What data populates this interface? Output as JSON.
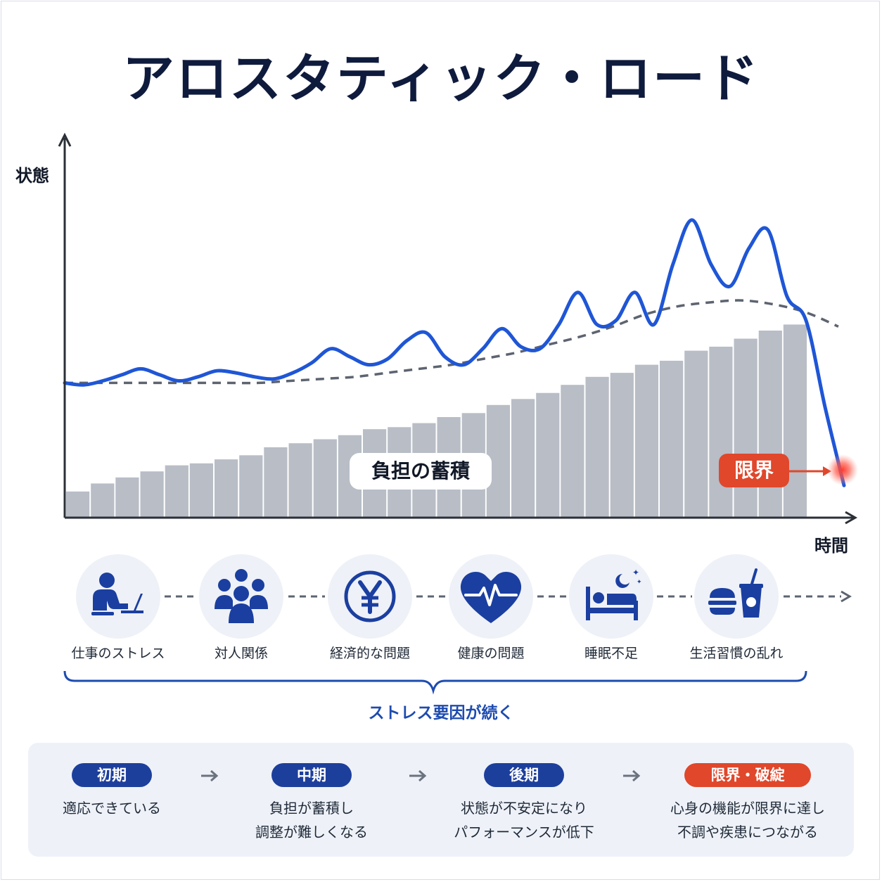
{
  "title": "アロスタティック・ロード",
  "chart_data": {
    "type": "line",
    "ylabel": "状態",
    "xlabel": "時間",
    "bars_label": "負担の蓄積",
    "limit_label": "限界",
    "bar_values": [
      0.13,
      0.17,
      0.2,
      0.23,
      0.26,
      0.27,
      0.29,
      0.31,
      0.35,
      0.37,
      0.39,
      0.41,
      0.44,
      0.45,
      0.47,
      0.5,
      0.52,
      0.56,
      0.59,
      0.62,
      0.66,
      0.7,
      0.72,
      0.76,
      0.78,
      0.83,
      0.85,
      0.89,
      0.93,
      0.96
    ],
    "state_values": [
      0.67,
      0.66,
      0.68,
      0.71,
      0.74,
      0.71,
      0.68,
      0.7,
      0.73,
      0.72,
      0.7,
      0.69,
      0.72,
      0.77,
      0.84,
      0.8,
      0.76,
      0.79,
      0.88,
      0.92,
      0.8,
      0.76,
      0.84,
      0.94,
      0.85,
      0.84,
      0.96,
      1.12,
      0.96,
      0.98,
      1.12,
      0.96,
      1.26,
      1.48,
      1.26,
      1.15,
      1.34,
      1.43,
      1.1,
      0.98,
      0.55,
      0.16
    ],
    "baseline_values": [
      0.67,
      0.67,
      0.67,
      0.67,
      0.67,
      0.67,
      0.67,
      0.68,
      0.69,
      0.7,
      0.72,
      0.74,
      0.76,
      0.79,
      0.82,
      0.86,
      0.9,
      0.95,
      1.01,
      1.05,
      1.07,
      1.08,
      1.06,
      1.02,
      0.95
    ]
  },
  "factors": [
    {
      "label": "仕事のストレス",
      "icon": "person-laptop-icon"
    },
    {
      "label": "対人関係",
      "icon": "people-group-icon"
    },
    {
      "label": "経済的な問題",
      "icon": "yen-coin-icon"
    },
    {
      "label": "健康の問題",
      "icon": "heart-pulse-icon"
    },
    {
      "label": "睡眠不足",
      "icon": "sleep-bed-icon"
    },
    {
      "label": "生活習慣の乱れ",
      "icon": "fast-food-icon"
    }
  ],
  "factor_caption": "ストレス要因が続く",
  "stages": [
    {
      "badge": "初期",
      "lines": [
        "適応できている"
      ]
    },
    {
      "badge": "中期",
      "lines": [
        "負担が蓄積し",
        "調整が難しくなる"
      ]
    },
    {
      "badge": "後期",
      "lines": [
        "状態が不安定になり",
        "パフォーマンスが低下"
      ]
    },
    {
      "badge": "限界・破綻",
      "lines": [
        "心身の機能が限界に達し",
        "不調や疾患につながる"
      ]
    }
  ],
  "colors": {
    "navy": "#0f1b3d",
    "blue": "#1f56d6",
    "badge_blue": "#1d3f9c",
    "gray_bar": "#b8bdc6",
    "dashed": "#5d6470",
    "red": "#e0472b",
    "icon_blue": "#1b3fa0"
  }
}
